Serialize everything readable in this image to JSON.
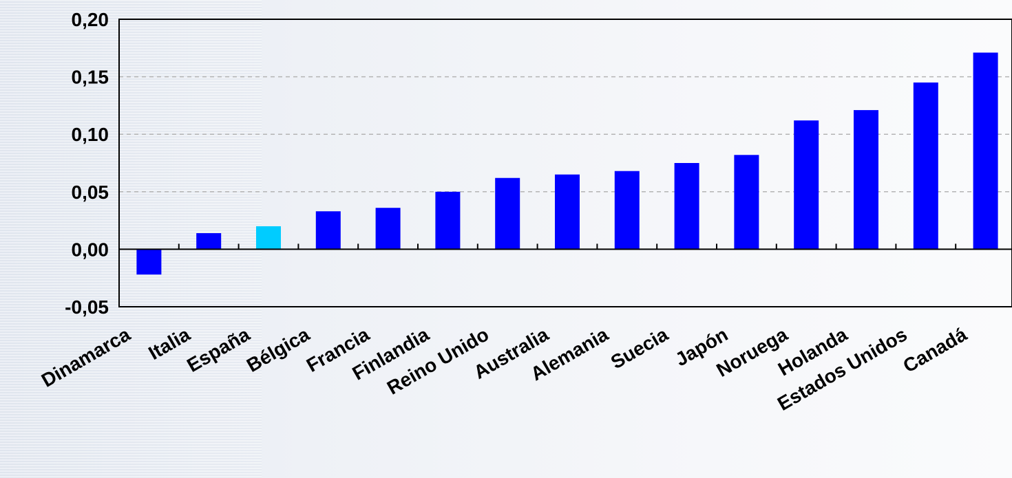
{
  "chart_data": {
    "type": "bar",
    "categories": [
      "Dinamarca",
      "Italia",
      "España",
      "Bélgica",
      "Francia",
      "Finlandia",
      "Reino Unido",
      "Australia",
      "Alemania",
      "Suecia",
      "Japón",
      "Noruega",
      "Holanda",
      "Estados Unidos",
      "Canadá"
    ],
    "values": [
      -0.022,
      0.014,
      0.02,
      0.033,
      0.036,
      0.05,
      0.062,
      0.065,
      0.068,
      0.075,
      0.082,
      0.112,
      0.121,
      0.145,
      0.171
    ],
    "ylim": [
      -0.05,
      0.2
    ],
    "yticks": [
      -0.05,
      0.0,
      0.05,
      0.1,
      0.15,
      0.2
    ],
    "ytick_labels": [
      "-0,05",
      "0,00",
      "0,05",
      "0,10",
      "0,15",
      "0,20"
    ],
    "grid": true,
    "colors": {
      "bar": "#0000ff",
      "highlight": "#00ccff",
      "highlight_category": "España",
      "grid": "#b4b4b4",
      "axis": "#000000"
    }
  }
}
